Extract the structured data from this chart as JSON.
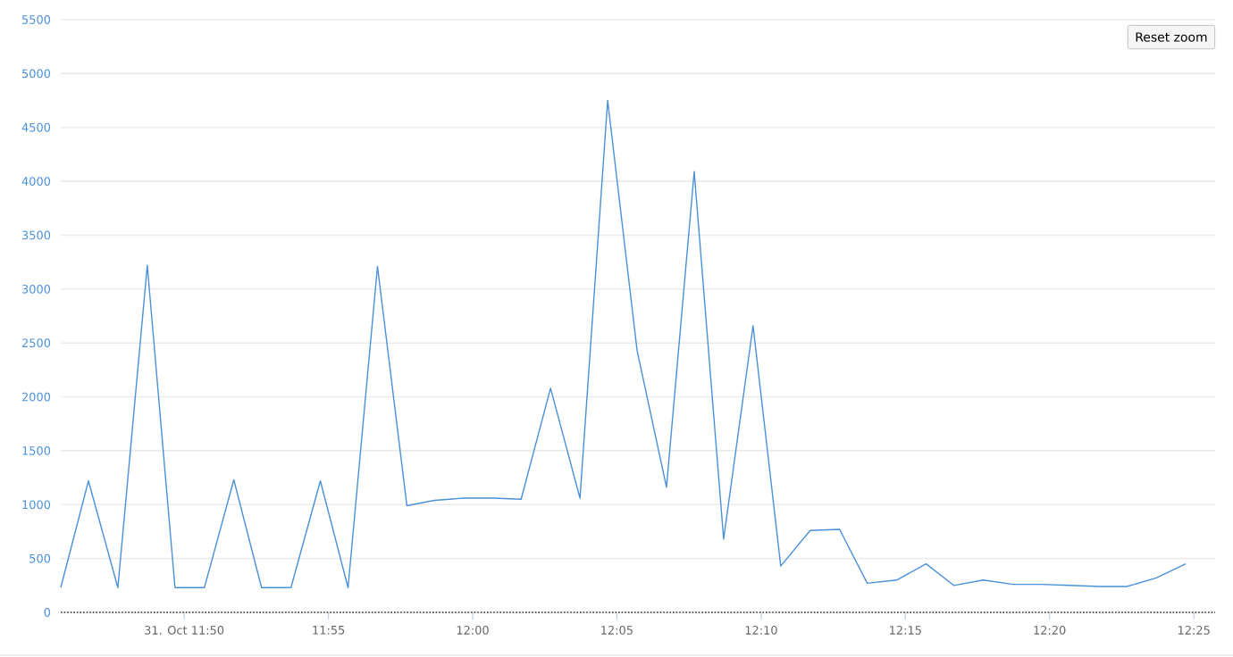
{
  "chart_data": {
    "type": "line",
    "x": [
      11.762,
      11.778,
      11.795,
      11.812,
      11.828,
      11.845,
      11.862,
      11.878,
      11.895,
      11.912,
      11.928,
      11.945,
      11.962,
      11.978,
      11.995,
      12.012,
      12.028,
      12.045,
      12.062,
      12.078,
      12.095,
      12.112,
      12.128,
      12.145,
      12.162,
      12.178,
      12.195,
      12.212,
      12.228,
      12.245,
      12.262,
      12.278,
      12.295,
      12.312,
      12.328,
      12.345,
      12.362,
      12.378,
      12.395,
      12.412
    ],
    "series": [
      {
        "color": "#4a90d9",
        "values": [
          230,
          1220,
          230,
          3220,
          230,
          230,
          1230,
          230,
          230,
          1220,
          230,
          3210,
          990,
          1040,
          1060,
          1060,
          1050,
          2080,
          1060,
          4750,
          2430,
          1160,
          4090,
          680,
          2660,
          430,
          760,
          770,
          270,
          300,
          450,
          250,
          300,
          260,
          260,
          250,
          240,
          240,
          320,
          450
        ]
      }
    ],
    "xlim": [
      11.762,
      12.429
    ],
    "ylim": [
      0,
      5500
    ],
    "xticks": [
      {
        "value": 11.8333,
        "label": "31. Oct 11:50"
      },
      {
        "value": 11.9167,
        "label": "11:55"
      },
      {
        "value": 12,
        "label": "12:00"
      },
      {
        "value": 12.0833,
        "label": "12:05"
      },
      {
        "value": 12.1667,
        "label": "12:10"
      },
      {
        "value": 12.25,
        "label": "12:15"
      },
      {
        "value": 12.3333,
        "label": "12:20"
      },
      {
        "value": 12.4167,
        "label": "12:25"
      }
    ],
    "yticks": [
      0,
      500,
      1000,
      1500,
      2000,
      2500,
      3000,
      3500,
      4000,
      4500,
      5000,
      5500
    ],
    "grid": "y",
    "marker": "none",
    "line_style": "solid",
    "legend": false,
    "ref_lines": [
      {
        "axis": "y",
        "value": 0,
        "color": "#333333",
        "line_style": "dotted"
      }
    ],
    "annotations": [
      "Reset zoom"
    ]
  }
}
